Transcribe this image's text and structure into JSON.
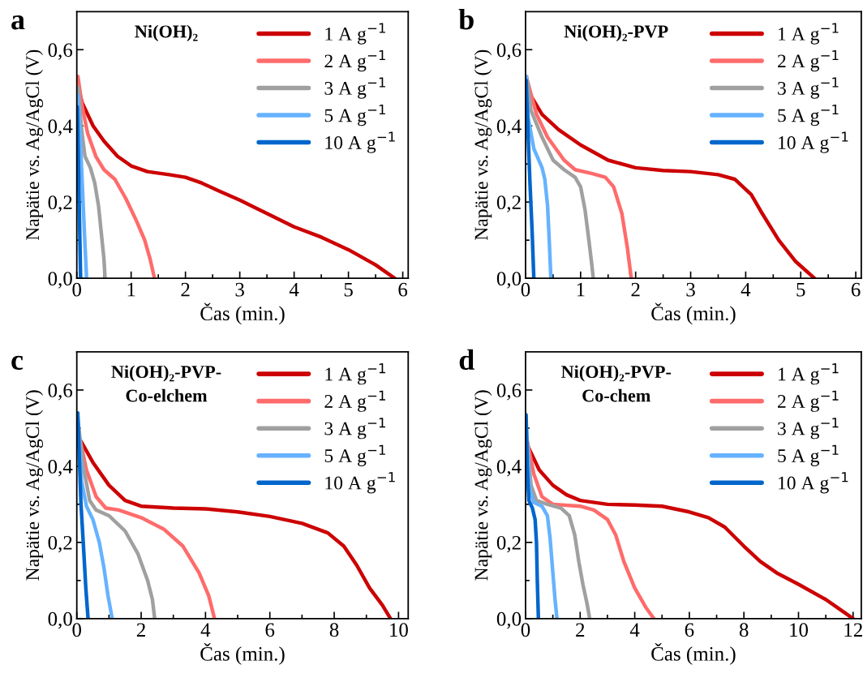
{
  "chart_data": [
    {
      "type": "line",
      "title": "Ni(OH)₂",
      "xlabel": "Čas (min.)",
      "ylabel": "Napätie vs. Ag/AgCl (V)",
      "annotations": [
        "a"
      ],
      "legend": "top right",
      "line_style": "solid",
      "marker": "none",
      "grid": false,
      "xlim": [
        0,
        6.1
      ],
      "xticks": [
        0,
        1,
        2,
        3,
        4,
        5,
        6
      ],
      "ylim": [
        0,
        0.7
      ],
      "yticks": [
        {
          "value": 0,
          "label": "0,0"
        },
        {
          "value": 0.2,
          "label": "0,2"
        },
        {
          "value": 0.4,
          "label": "0,4"
        },
        {
          "value": 0.6,
          "label": "0,6"
        }
      ],
      "series": [
        {
          "name": "1 A g$^{−1}$",
          "color": "#cc0000",
          "x": [
            0.03,
            0.1,
            0.3,
            0.5,
            0.75,
            1.0,
            1.3,
            1.7,
            2.0,
            2.3,
            2.6,
            3.0,
            3.5,
            4.0,
            4.5,
            5.0,
            5.5,
            5.85
          ],
          "values": [
            0.5,
            0.46,
            0.4,
            0.36,
            0.32,
            0.295,
            0.28,
            0.272,
            0.265,
            0.25,
            0.23,
            0.205,
            0.17,
            0.135,
            0.108,
            0.075,
            0.035,
            0.0
          ]
        },
        {
          "name": "2 A g$^{−1}$",
          "color": "#ff6b6b",
          "x": [
            0.02,
            0.1,
            0.2,
            0.35,
            0.5,
            0.7,
            0.9,
            1.1,
            1.25,
            1.35,
            1.43
          ],
          "values": [
            0.53,
            0.45,
            0.38,
            0.32,
            0.285,
            0.26,
            0.21,
            0.15,
            0.1,
            0.05,
            0.0
          ]
        },
        {
          "name": "3 A g$^{−1}$",
          "color": "#a0a0a0",
          "x": [
            0.03,
            0.08,
            0.15,
            0.25,
            0.33,
            0.4,
            0.45,
            0.5,
            0.52
          ],
          "values": [
            0.5,
            0.4,
            0.32,
            0.29,
            0.25,
            0.19,
            0.12,
            0.05,
            0.0
          ]
        },
        {
          "name": "5 A g$^{−1}$",
          "color": "#66b2ff",
          "x": [
            0.02,
            0.06,
            0.1,
            0.14,
            0.18
          ],
          "values": [
            0.48,
            0.38,
            0.25,
            0.12,
            0.0
          ]
        },
        {
          "name": "10 A g$^{−1}$",
          "color": "#0066cc",
          "x": [
            0.01,
            0.03,
            0.05,
            0.07
          ],
          "values": [
            0.45,
            0.3,
            0.15,
            0.0
          ]
        }
      ]
    },
    {
      "type": "line",
      "title": "Ni(OH)₂-PVP",
      "xlabel": "Čas (min.)",
      "ylabel": "Napätie vs. Ag/AgCl (V)",
      "annotations": [
        "b"
      ],
      "legend": "top right",
      "line_style": "solid",
      "marker": "none",
      "grid": false,
      "xlim": [
        0,
        6.1
      ],
      "xticks": [
        0,
        1,
        2,
        3,
        4,
        5,
        6
      ],
      "ylim": [
        0,
        0.7
      ],
      "yticks": [
        {
          "value": 0,
          "label": "0,0"
        },
        {
          "value": 0.2,
          "label": "0,2"
        },
        {
          "value": 0.4,
          "label": "0,4"
        },
        {
          "value": 0.6,
          "label": "0,6"
        }
      ],
      "series": [
        {
          "name": "1 A g$^{−1}$",
          "color": "#cc0000",
          "x": [
            0.05,
            0.3,
            0.6,
            1.0,
            1.5,
            2.0,
            2.5,
            3.0,
            3.5,
            3.8,
            4.1,
            4.3,
            4.6,
            4.9,
            5.25
          ],
          "values": [
            0.49,
            0.43,
            0.39,
            0.35,
            0.31,
            0.29,
            0.283,
            0.28,
            0.272,
            0.26,
            0.22,
            0.17,
            0.1,
            0.045,
            0.0
          ]
        },
        {
          "name": "2 A g$^{−1}$",
          "color": "#ff6b6b",
          "x": [
            0.03,
            0.2,
            0.4,
            0.7,
            0.9,
            1.2,
            1.45,
            1.6,
            1.75,
            1.85,
            1.92
          ],
          "values": [
            0.52,
            0.43,
            0.37,
            0.31,
            0.285,
            0.275,
            0.265,
            0.24,
            0.17,
            0.08,
            0.0
          ]
        },
        {
          "name": "3 A g$^{−1}$",
          "color": "#a0a0a0",
          "x": [
            0.02,
            0.1,
            0.3,
            0.5,
            0.7,
            0.9,
            1.0,
            1.08,
            1.15,
            1.2,
            1.23
          ],
          "values": [
            0.53,
            0.44,
            0.37,
            0.31,
            0.285,
            0.265,
            0.24,
            0.18,
            0.1,
            0.04,
            0.0
          ]
        },
        {
          "name": "5 A g$^{−1}$",
          "color": "#66b2ff",
          "x": [
            0.01,
            0.05,
            0.15,
            0.3,
            0.35,
            0.4,
            0.43,
            0.46
          ],
          "values": [
            0.53,
            0.42,
            0.34,
            0.29,
            0.26,
            0.19,
            0.1,
            0.0
          ]
        },
        {
          "name": "10 A g$^{−1}$",
          "color": "#0066cc",
          "x": [
            0.01,
            0.04,
            0.08,
            0.12,
            0.15
          ],
          "values": [
            0.52,
            0.4,
            0.25,
            0.12,
            0.0
          ]
        }
      ]
    },
    {
      "type": "line",
      "title": "Ni(OH)₂-PVP-\nCo-elchem",
      "xlabel": "Čas (min.)",
      "ylabel": "Napätie vs. Ag/AgCl (V)",
      "annotations": [
        "c"
      ],
      "legend": "top right",
      "line_style": "solid",
      "marker": "none",
      "grid": false,
      "xlim": [
        0,
        10.3
      ],
      "xticks": [
        0,
        2,
        4,
        6,
        8,
        10
      ],
      "ylim": [
        0,
        0.7
      ],
      "yticks": [
        {
          "value": 0,
          "label": "0,0"
        },
        {
          "value": 0.2,
          "label": "0,2"
        },
        {
          "value": 0.4,
          "label": "0,4"
        },
        {
          "value": 0.6,
          "label": "0,6"
        }
      ],
      "series": [
        {
          "name": "1 A g$^{−1}$",
          "color": "#cc0000",
          "x": [
            0.1,
            0.5,
            1.0,
            1.5,
            2.0,
            3,
            4,
            5,
            6,
            7,
            7.8,
            8.3,
            8.7,
            9.1,
            9.5,
            9.75
          ],
          "values": [
            0.47,
            0.41,
            0.35,
            0.31,
            0.295,
            0.29,
            0.288,
            0.28,
            0.268,
            0.25,
            0.225,
            0.19,
            0.14,
            0.08,
            0.035,
            0.0
          ]
        },
        {
          "name": "2 A g$^{−1}$",
          "color": "#ff6b6b",
          "x": [
            0.1,
            0.3,
            0.6,
            0.9,
            1.3,
            2.0,
            2.7,
            3.3,
            3.8,
            4.1,
            4.28
          ],
          "values": [
            0.47,
            0.39,
            0.32,
            0.29,
            0.285,
            0.265,
            0.235,
            0.19,
            0.12,
            0.06,
            0.0
          ]
        },
        {
          "name": "3 A g$^{−1}$",
          "color": "#a0a0a0",
          "x": [
            0.05,
            0.2,
            0.4,
            0.6,
            1.0,
            1.5,
            1.9,
            2.2,
            2.35,
            2.42
          ],
          "values": [
            0.51,
            0.4,
            0.31,
            0.285,
            0.27,
            0.23,
            0.17,
            0.1,
            0.05,
            0.0
          ]
        },
        {
          "name": "5 A g$^{−1}$",
          "color": "#66b2ff",
          "x": [
            0.03,
            0.15,
            0.3,
            0.5,
            0.7,
            0.85,
            0.97,
            1.1
          ],
          "values": [
            0.53,
            0.36,
            0.295,
            0.26,
            0.2,
            0.13,
            0.06,
            0.0
          ]
        },
        {
          "name": "10 A g$^{−1}$",
          "color": "#0066cc",
          "x": [
            0.03,
            0.08,
            0.13,
            0.2,
            0.28,
            0.35
          ],
          "values": [
            0.54,
            0.42,
            0.3,
            0.2,
            0.08,
            0.0
          ]
        }
      ]
    },
    {
      "type": "line",
      "title": "Ni(OH)₂-PVP-\nCo-chem",
      "xlabel": "Čas (min.)",
      "ylabel": "Napätie vs. Ag/AgCl (V)",
      "annotations": [
        "d"
      ],
      "legend": "top right",
      "line_style": "solid",
      "marker": "none",
      "grid": false,
      "xlim": [
        0,
        12.3
      ],
      "xticks": [
        0,
        2,
        4,
        6,
        8,
        10,
        12
      ],
      "ylim": [
        0,
        0.7
      ],
      "yticks": [
        {
          "value": 0,
          "label": "0,0"
        },
        {
          "value": 0.2,
          "label": "0,2"
        },
        {
          "value": 0.4,
          "label": "0,4"
        },
        {
          "value": 0.6,
          "label": "0,6"
        }
      ],
      "series": [
        {
          "name": "1 A g$^{−1}$",
          "color": "#cc0000",
          "x": [
            0.1,
            0.5,
            1.0,
            1.5,
            2.0,
            3,
            4,
            5,
            6,
            6.7,
            7.3,
            8,
            8.6,
            9.2,
            10,
            11,
            11.6,
            12.0
          ],
          "values": [
            0.45,
            0.39,
            0.35,
            0.325,
            0.31,
            0.3,
            0.298,
            0.295,
            0.28,
            0.265,
            0.24,
            0.19,
            0.15,
            0.12,
            0.09,
            0.05,
            0.02,
            0.0
          ]
        },
        {
          "name": "2 A g$^{−1}$",
          "color": "#ff6b6b",
          "x": [
            0.05,
            0.3,
            0.6,
            1.0,
            2.0,
            2.5,
            3.0,
            3.3,
            3.6,
            4.0,
            4.4,
            4.7
          ],
          "values": [
            0.47,
            0.38,
            0.32,
            0.3,
            0.295,
            0.285,
            0.26,
            0.22,
            0.15,
            0.08,
            0.03,
            0.0
          ]
        },
        {
          "name": "3 A g$^{−1}$",
          "color": "#a0a0a0",
          "x": [
            0.05,
            0.2,
            0.4,
            0.8,
            1.3,
            1.6,
            1.8,
            1.95,
            2.1,
            2.25,
            2.35
          ],
          "values": [
            0.47,
            0.35,
            0.31,
            0.3,
            0.29,
            0.27,
            0.22,
            0.15,
            0.09,
            0.04,
            0.0
          ]
        },
        {
          "name": "5 A g$^{−1}$",
          "color": "#66b2ff",
          "x": [
            0.03,
            0.15,
            0.3,
            0.6,
            0.8,
            0.9,
            1.0,
            1.08,
            1.15
          ],
          "values": [
            0.5,
            0.34,
            0.305,
            0.295,
            0.27,
            0.21,
            0.12,
            0.05,
            0.0
          ]
        },
        {
          "name": "10 A g$^{−1}$",
          "color": "#0066cc",
          "x": [
            0.02,
            0.06,
            0.12,
            0.25,
            0.35,
            0.4,
            0.43,
            0.47
          ],
          "values": [
            0.535,
            0.4,
            0.31,
            0.29,
            0.26,
            0.2,
            0.1,
            0.0
          ]
        }
      ]
    }
  ]
}
